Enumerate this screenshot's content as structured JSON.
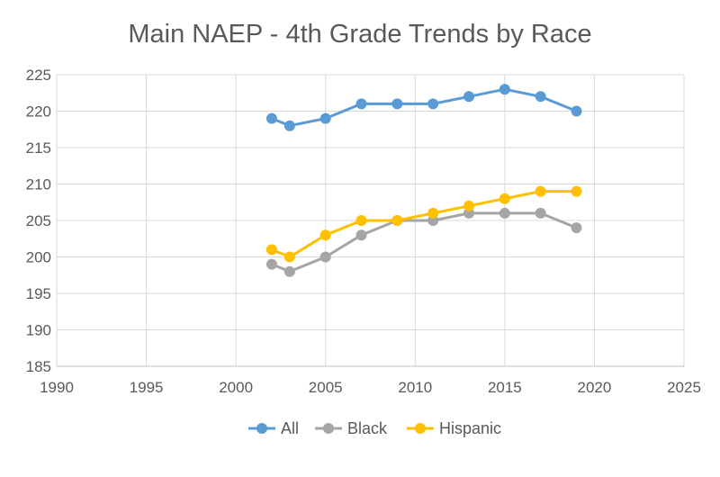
{
  "chart_data": {
    "type": "scatter",
    "title": "Main NAEP - 4th Grade Trends by Race",
    "xlabel": "",
    "ylabel": "",
    "xlim": [
      1990,
      2025
    ],
    "ylim": [
      185,
      225
    ],
    "x_ticks": [
      1990,
      1995,
      2000,
      2005,
      2010,
      2015,
      2020,
      2025
    ],
    "y_ticks": [
      185,
      190,
      195,
      200,
      205,
      210,
      215,
      220,
      225
    ],
    "grid": true,
    "legend_position": "bottom",
    "series": [
      {
        "name": "All",
        "color": "#5B9BD5",
        "points": [
          [
            2002,
            219
          ],
          [
            2003,
            218
          ],
          [
            2005,
            219
          ],
          [
            2007,
            221
          ],
          [
            2009,
            221
          ],
          [
            2011,
            221
          ],
          [
            2013,
            222
          ],
          [
            2015,
            223
          ],
          [
            2017,
            222
          ],
          [
            2019,
            220
          ]
        ]
      },
      {
        "name": "Black",
        "color": "#A5A5A5",
        "points": [
          [
            2002,
            199
          ],
          [
            2003,
            198
          ],
          [
            2005,
            200
          ],
          [
            2007,
            203
          ],
          [
            2009,
            205
          ],
          [
            2011,
            205
          ],
          [
            2013,
            206
          ],
          [
            2015,
            206
          ],
          [
            2017,
            206
          ],
          [
            2019,
            204
          ]
        ]
      },
      {
        "name": "Hispanic",
        "color": "#FFC000",
        "points": [
          [
            2002,
            201
          ],
          [
            2003,
            200
          ],
          [
            2005,
            203
          ],
          [
            2007,
            205
          ],
          [
            2009,
            205
          ],
          [
            2011,
            206
          ],
          [
            2013,
            207
          ],
          [
            2015,
            208
          ],
          [
            2017,
            209
          ],
          [
            2019,
            209
          ]
        ]
      }
    ]
  }
}
